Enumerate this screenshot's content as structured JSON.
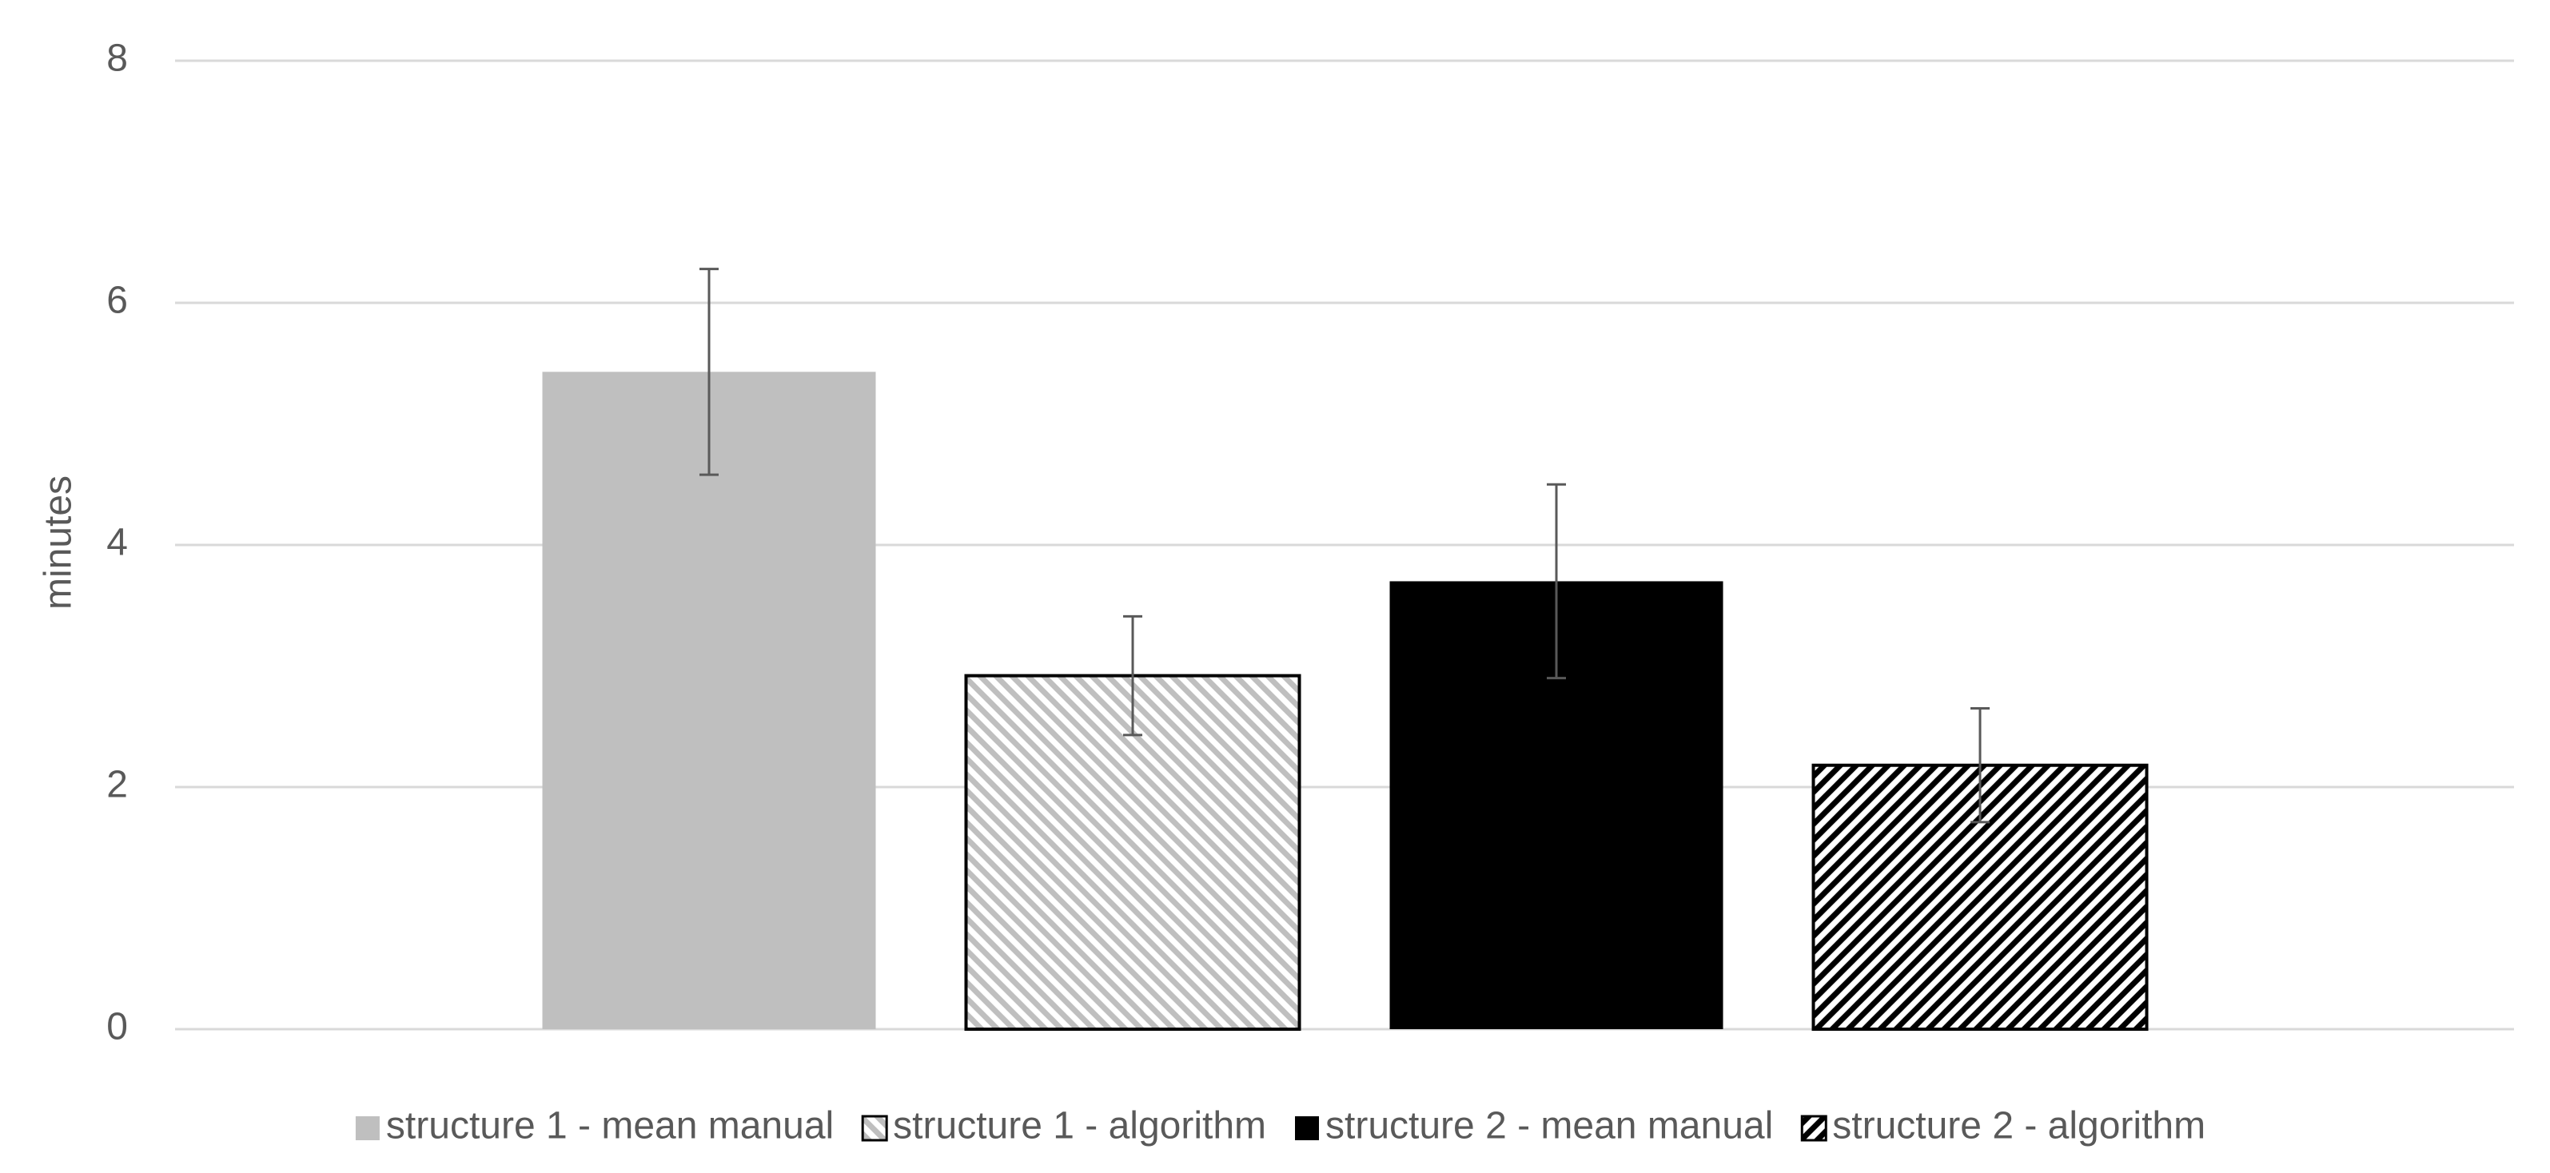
{
  "chart_data": {
    "type": "bar",
    "categories": [
      null
    ],
    "ylabel": "minutes",
    "ylim": [
      0,
      8
    ],
    "yticks": [
      0,
      2,
      4,
      6,
      8
    ],
    "grid": true,
    "legend": "bottom",
    "series": [
      {
        "name": "structure 1 - mean manual",
        "color": "#bfbfbf",
        "values": [
          5.43
        ],
        "errors": [
          0.85
        ]
      },
      {
        "name": "structure 1 - algorithm",
        "color": "#bfbfbf",
        "hatch": "down-diagonal",
        "values": [
          2.92
        ],
        "errors": [
          0.49
        ]
      },
      {
        "name": "structure 2 - mean manual",
        "color": "#000000",
        "values": [
          3.7
        ],
        "errors": [
          0.8
        ]
      },
      {
        "name": "structure 2 - algorithm",
        "color": "#000000",
        "hatch": "up-diagonal",
        "values": [
          2.18
        ],
        "errors": [
          0.47
        ]
      }
    ]
  }
}
